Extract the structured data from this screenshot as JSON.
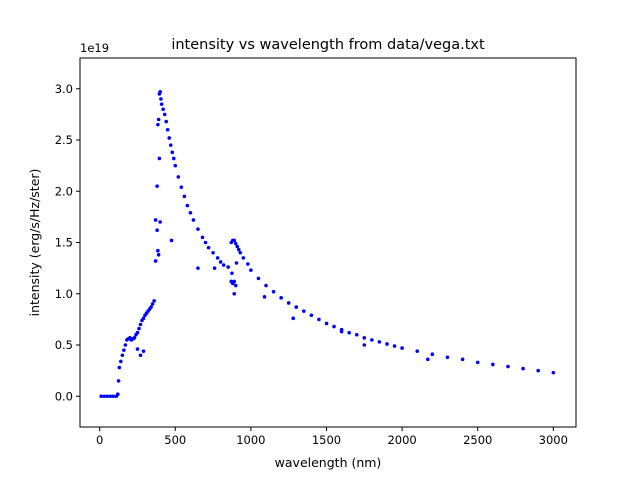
{
  "chart_data": {
    "type": "scatter",
    "title": "intensity vs wavelength from data/vega.txt",
    "xlabel": "wavelength (nm)",
    "ylabel": "intensity (erg/s/Hz/ster)",
    "y_offset_text": "1e19",
    "xlim": [
      -130,
      3150
    ],
    "ylim": [
      -0.3,
      3.3
    ],
    "xticks": [
      0,
      500,
      1000,
      1500,
      2000,
      2500,
      3000
    ],
    "xtick_labels": [
      "0",
      "500",
      "1000",
      "1500",
      "2000",
      "2500",
      "3000"
    ],
    "yticks": [
      0.0,
      0.5,
      1.0,
      1.5,
      2.0,
      2.5,
      3.0
    ],
    "ytick_labels": [
      "0.0",
      "0.5",
      "1.0",
      "1.5",
      "2.0",
      "2.5",
      "3.0"
    ],
    "grid": false,
    "marker_color": "#0000ff",
    "series": [
      {
        "x": [
          10,
          30,
          50,
          70,
          90,
          110,
          120,
          125,
          130,
          140,
          150,
          160,
          170,
          180,
          190,
          200,
          210,
          220,
          230,
          240,
          250,
          260,
          270,
          280,
          290,
          300,
          310,
          320,
          330,
          340,
          350,
          360,
          370,
          380,
          385,
          390,
          395,
          400,
          405,
          410,
          420,
          430,
          440,
          450,
          460,
          470,
          480,
          490,
          500,
          520,
          540,
          560,
          580,
          600,
          620,
          650,
          680,
          700,
          720,
          750,
          780,
          800,
          820,
          850,
          870,
          880,
          890,
          900,
          910,
          920,
          930,
          950,
          980,
          1000,
          1050,
          1100,
          1150,
          1200,
          1250,
          1300,
          1350,
          1400,
          1450,
          1500,
          1550,
          1600,
          1650,
          1700,
          1750,
          1800,
          1850,
          1900,
          1950,
          2000,
          2100,
          2200,
          2300,
          2400,
          2500,
          2600,
          2700,
          2800,
          2900,
          3000,
          370,
          380,
          385,
          390,
          395,
          400,
          475,
          650,
          760,
          870,
          880,
          890,
          900,
          1090,
          1280,
          1600,
          1750,
          2170,
          250,
          270,
          290,
          875,
          890,
          905
        ],
        "y": [
          0.0,
          0.0,
          0.0,
          0.0,
          0.0,
          0.0,
          0.02,
          0.15,
          0.28,
          0.34,
          0.4,
          0.45,
          0.5,
          0.55,
          0.56,
          0.57,
          0.55,
          0.56,
          0.57,
          0.6,
          0.62,
          0.66,
          0.7,
          0.74,
          0.76,
          0.79,
          0.81,
          0.83,
          0.85,
          0.87,
          0.9,
          0.93,
          1.32,
          2.05,
          2.65,
          2.7,
          2.95,
          2.97,
          2.9,
          2.85,
          2.8,
          2.75,
          2.68,
          2.6,
          2.52,
          2.45,
          2.38,
          2.32,
          2.25,
          2.14,
          2.04,
          1.95,
          1.86,
          1.79,
          1.72,
          1.63,
          1.55,
          1.5,
          1.45,
          1.4,
          1.35,
          1.31,
          1.28,
          1.26,
          1.5,
          1.52,
          1.52,
          1.49,
          1.46,
          1.43,
          1.4,
          1.35,
          1.29,
          1.23,
          1.15,
          1.08,
          1.02,
          0.96,
          0.91,
          0.87,
          0.83,
          0.79,
          0.75,
          0.71,
          0.68,
          0.65,
          0.62,
          0.6,
          0.57,
          0.55,
          0.53,
          0.51,
          0.49,
          0.47,
          0.44,
          0.41,
          0.38,
          0.36,
          0.33,
          0.31,
          0.29,
          0.27,
          0.25,
          0.23,
          1.72,
          1.62,
          1.42,
          1.38,
          2.32,
          1.7,
          1.52,
          1.25,
          1.25,
          1.12,
          1.1,
          1.12,
          1.08,
          0.97,
          0.76,
          0.63,
          0.5,
          0.36,
          0.46,
          0.4,
          0.44,
          1.2,
          1.0,
          1.3
        ]
      }
    ]
  }
}
